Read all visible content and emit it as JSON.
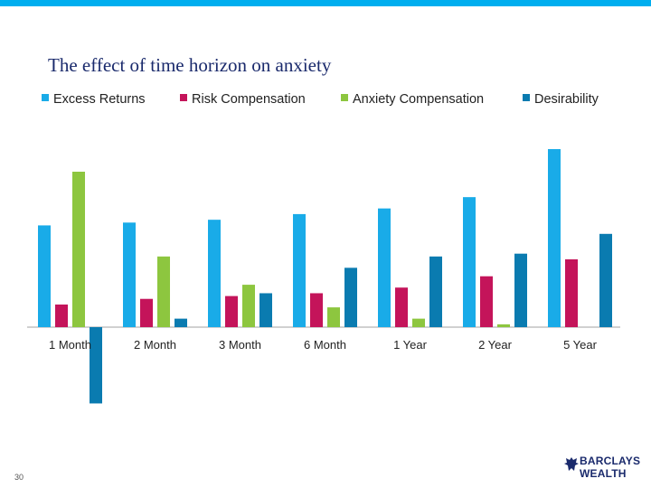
{
  "page": {
    "number": "30",
    "logo_line1": "BARCLAYS",
    "logo_line2": "WEALTH",
    "accent_color": "#00aeef"
  },
  "chart_data": {
    "type": "bar",
    "title": "The effect of time horizon on anxiety",
    "categories": [
      "1 Month",
      "2 Month",
      "3 Month",
      "6 Month",
      "1 Year",
      "2 Year",
      "5 Year"
    ],
    "series": [
      {
        "name": "Excess Returns",
        "color": "#19abe8",
        "values": [
          3.6,
          3.7,
          3.8,
          4.0,
          4.2,
          4.6,
          6.3
        ]
      },
      {
        "name": "Risk Compensation",
        "color": "#c4145a",
        "values": [
          0.8,
          1.0,
          1.1,
          1.2,
          1.4,
          1.8,
          2.4
        ]
      },
      {
        "name": "Anxiety Compensation",
        "color": "#8dc63f",
        "values": [
          5.5,
          2.5,
          1.5,
          0.7,
          0.3,
          0.1,
          0.0
        ]
      },
      {
        "name": "Desirability",
        "color": "#0a7bb0",
        "values": [
          -2.7,
          0.3,
          1.2,
          2.1,
          2.5,
          2.6,
          3.3
        ]
      }
    ],
    "ylim": [
      -3,
      6.5
    ],
    "xlabel": "",
    "ylabel": "",
    "grid": false,
    "legend": "top"
  }
}
